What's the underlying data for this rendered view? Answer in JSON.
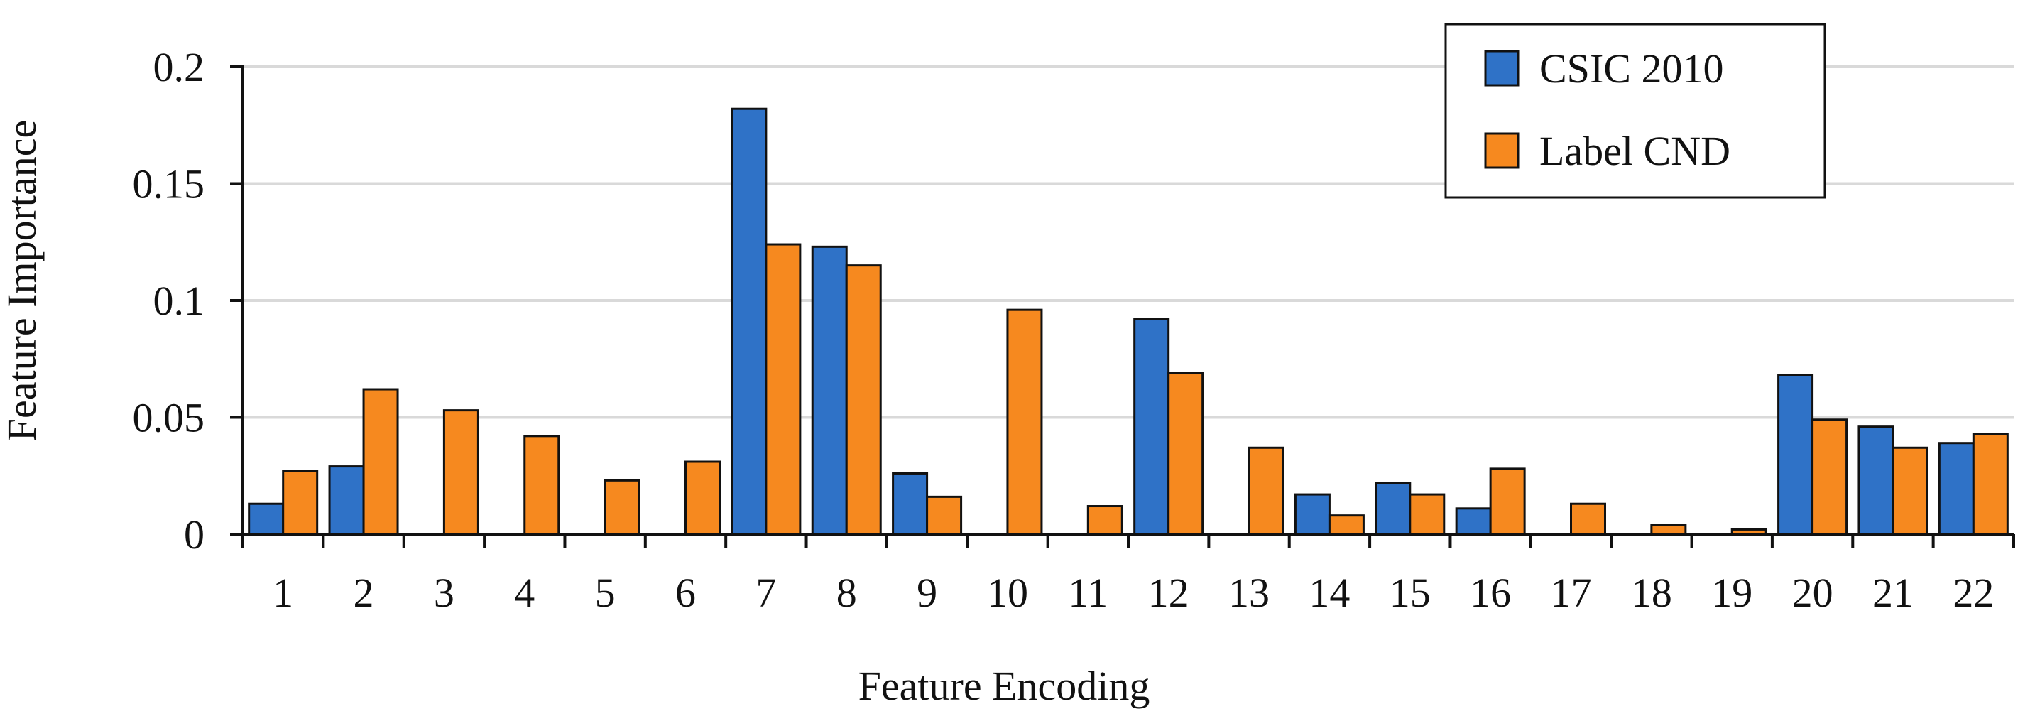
{
  "chart_data": {
    "type": "bar",
    "title": "",
    "xlabel": "Feature Encoding",
    "ylabel": "Feature Importance",
    "categories": [
      "1",
      "2",
      "3",
      "4",
      "5",
      "6",
      "7",
      "8",
      "9",
      "10",
      "11",
      "12",
      "13",
      "14",
      "15",
      "16",
      "17",
      "18",
      "19",
      "20",
      "21",
      "22"
    ],
    "ylim": [
      0,
      0.2
    ],
    "yticks": [
      {
        "value": 0,
        "label": "0"
      },
      {
        "value": 0.05,
        "label": "0.05"
      },
      {
        "value": 0.1,
        "label": "0.1"
      },
      {
        "value": 0.15,
        "label": "0.15"
      },
      {
        "value": 0.2,
        "label": "0.2"
      }
    ],
    "grid": "horizontal",
    "legend_position": "top-right",
    "series": [
      {
        "name": "CSIC 2010",
        "color": "#2f72c7",
        "values": [
          0.013,
          0.029,
          0,
          0,
          0,
          0,
          0.182,
          0.123,
          0.026,
          0,
          0,
          0.092,
          0,
          0.017,
          0.022,
          0.011,
          0,
          0,
          0,
          0.068,
          0.046,
          0.039
        ]
      },
      {
        "name": "Label CND",
        "color": "#f6891f",
        "values": [
          0.027,
          0.062,
          0.053,
          0.042,
          0.023,
          0.031,
          0.124,
          0.115,
          0.016,
          0.096,
          0.012,
          0.069,
          0.037,
          0.008,
          0.017,
          0.028,
          0.013,
          0.004,
          0.002,
          0.049,
          0.037,
          0.043
        ]
      }
    ]
  }
}
